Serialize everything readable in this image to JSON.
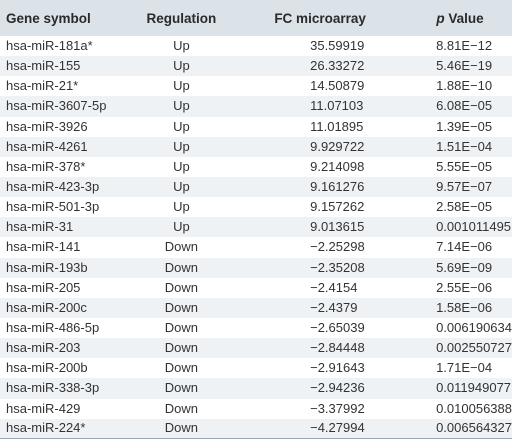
{
  "headers": {
    "gene": "Gene symbol",
    "regulation": "Regulation",
    "fc": "FC microarray",
    "p_prefix": "p",
    "p_suffix": " Value"
  },
  "rows": [
    {
      "gene": "hsa-miR-181a*",
      "regulation": "Up",
      "fc": "35.59919",
      "p": "8.81E−12"
    },
    {
      "gene": "hsa-miR-155",
      "regulation": "Up",
      "fc": "26.33272",
      "p": "5.46E−19"
    },
    {
      "gene": "hsa-miR-21*",
      "regulation": "Up",
      "fc": "14.50879",
      "p": "1.88E−10"
    },
    {
      "gene": "hsa-miR-3607-5p",
      "regulation": "Up",
      "fc": "11.07103",
      "p": "6.08E−05"
    },
    {
      "gene": "hsa-miR-3926",
      "regulation": "Up",
      "fc": "11.01895",
      "p": "1.39E−05"
    },
    {
      "gene": "hsa-miR-4261",
      "regulation": "Up",
      "fc": "9.929722",
      "p": "1.51E−04"
    },
    {
      "gene": "hsa-miR-378*",
      "regulation": "Up",
      "fc": "9.214098",
      "p": "5.55E−05"
    },
    {
      "gene": "hsa-miR-423-3p",
      "regulation": "Up",
      "fc": "9.161276",
      "p": "9.57E−07"
    },
    {
      "gene": "hsa-miR-501-3p",
      "regulation": "Up",
      "fc": "9.157262",
      "p": "2.58E−05"
    },
    {
      "gene": "hsa-miR-31",
      "regulation": "Up",
      "fc": "9.013615",
      "p": "0.001011495"
    },
    {
      "gene": "hsa-miR-141",
      "regulation": "Down",
      "fc": "−2.25298",
      "p": "7.14E−06"
    },
    {
      "gene": "hsa-miR-193b",
      "regulation": "Down",
      "fc": "−2.35208",
      "p": "5.69E−09"
    },
    {
      "gene": "hsa-miR-205",
      "regulation": "Down",
      "fc": "−2.4154",
      "p": "2.55E−06"
    },
    {
      "gene": "hsa-miR-200c",
      "regulation": "Down",
      "fc": "−2.4379",
      "p": "1.58E−06"
    },
    {
      "gene": "hsa-miR-486-5p",
      "regulation": "Down",
      "fc": "−2.65039",
      "p": "0.006190634"
    },
    {
      "gene": "hsa-miR-203",
      "regulation": "Down",
      "fc": "−2.84448",
      "p": "0.002550727"
    },
    {
      "gene": "hsa-miR-200b",
      "regulation": "Down",
      "fc": "−2.91643",
      "p": "1.71E−04"
    },
    {
      "gene": "hsa-miR-338-3p",
      "regulation": "Down",
      "fc": "−2.94236",
      "p": "0.011949077"
    },
    {
      "gene": "hsa-miR-429",
      "regulation": "Down",
      "fc": "−3.37992",
      "p": "0.010056388"
    },
    {
      "gene": "hsa-miR-224*",
      "regulation": "Down",
      "fc": "−4.27994",
      "p": "0.006564327"
    }
  ]
}
